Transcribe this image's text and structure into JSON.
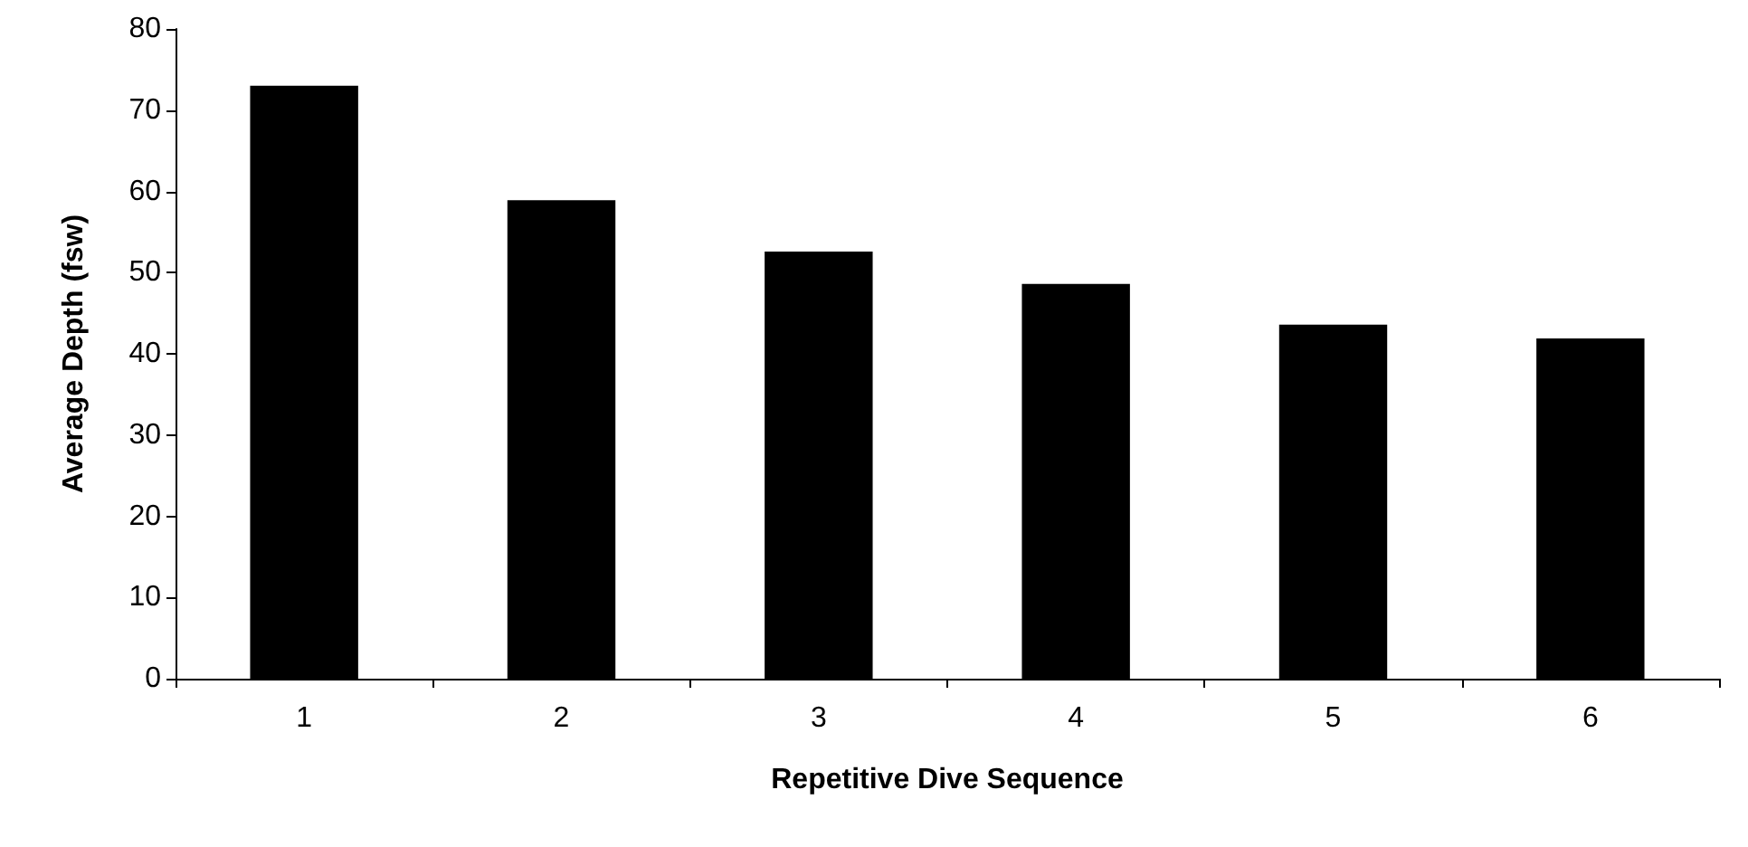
{
  "chart_data": {
    "type": "bar",
    "xlabel": "Repetitive Dive Sequence",
    "ylabel": "Average Depth (fsw)",
    "categories": [
      "1",
      "2",
      "3",
      "4",
      "5",
      "6"
    ],
    "values": [
      73.0,
      58.9,
      52.6,
      48.6,
      43.6,
      41.9
    ],
    "color": "#000000",
    "ylim": [
      0,
      80
    ],
    "yticks": [
      0,
      10,
      20,
      30,
      40,
      50,
      60,
      70,
      80
    ],
    "grid": false
  }
}
